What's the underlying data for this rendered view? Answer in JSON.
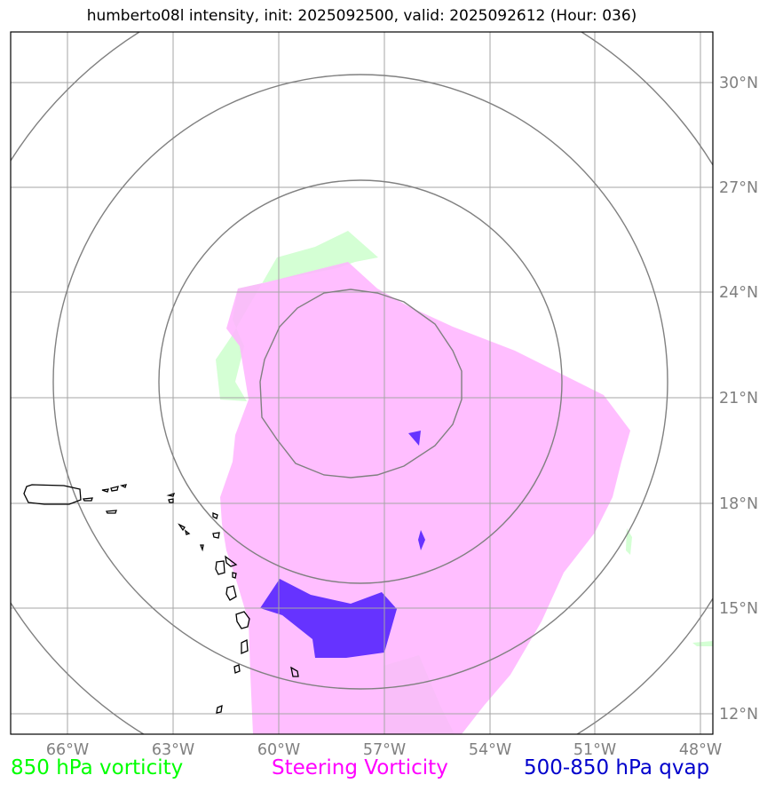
{
  "title": "humberto08l intensity, init: 2025092500, valid: 2025092612 (Hour: 036)",
  "map": {
    "lon_ticks": [
      "66°W",
      "63°W",
      "60°W",
      "57°W",
      "54°W",
      "51°W",
      "48°W"
    ],
    "lat_ticks": [
      "30°N",
      "27°N",
      "24°N",
      "21°N",
      "18°N",
      "15°N",
      "12°N"
    ],
    "colors": {
      "vorticity_850": "#ccffcc",
      "steering_vorticity": "#ffb3ff",
      "qvap": "#6633ff",
      "range_rings": "#808080",
      "gridlines": "#a6a6a6",
      "coastline": "#000000"
    }
  },
  "legend": {
    "vort850": {
      "label": "850 hPa vorticity",
      "color": "#00ff00"
    },
    "steering": {
      "label": "Steering Vorticity",
      "color": "#ff00ff"
    },
    "qvap": {
      "label": "500-850 hPa qvap",
      "color": "#0000cc"
    }
  }
}
